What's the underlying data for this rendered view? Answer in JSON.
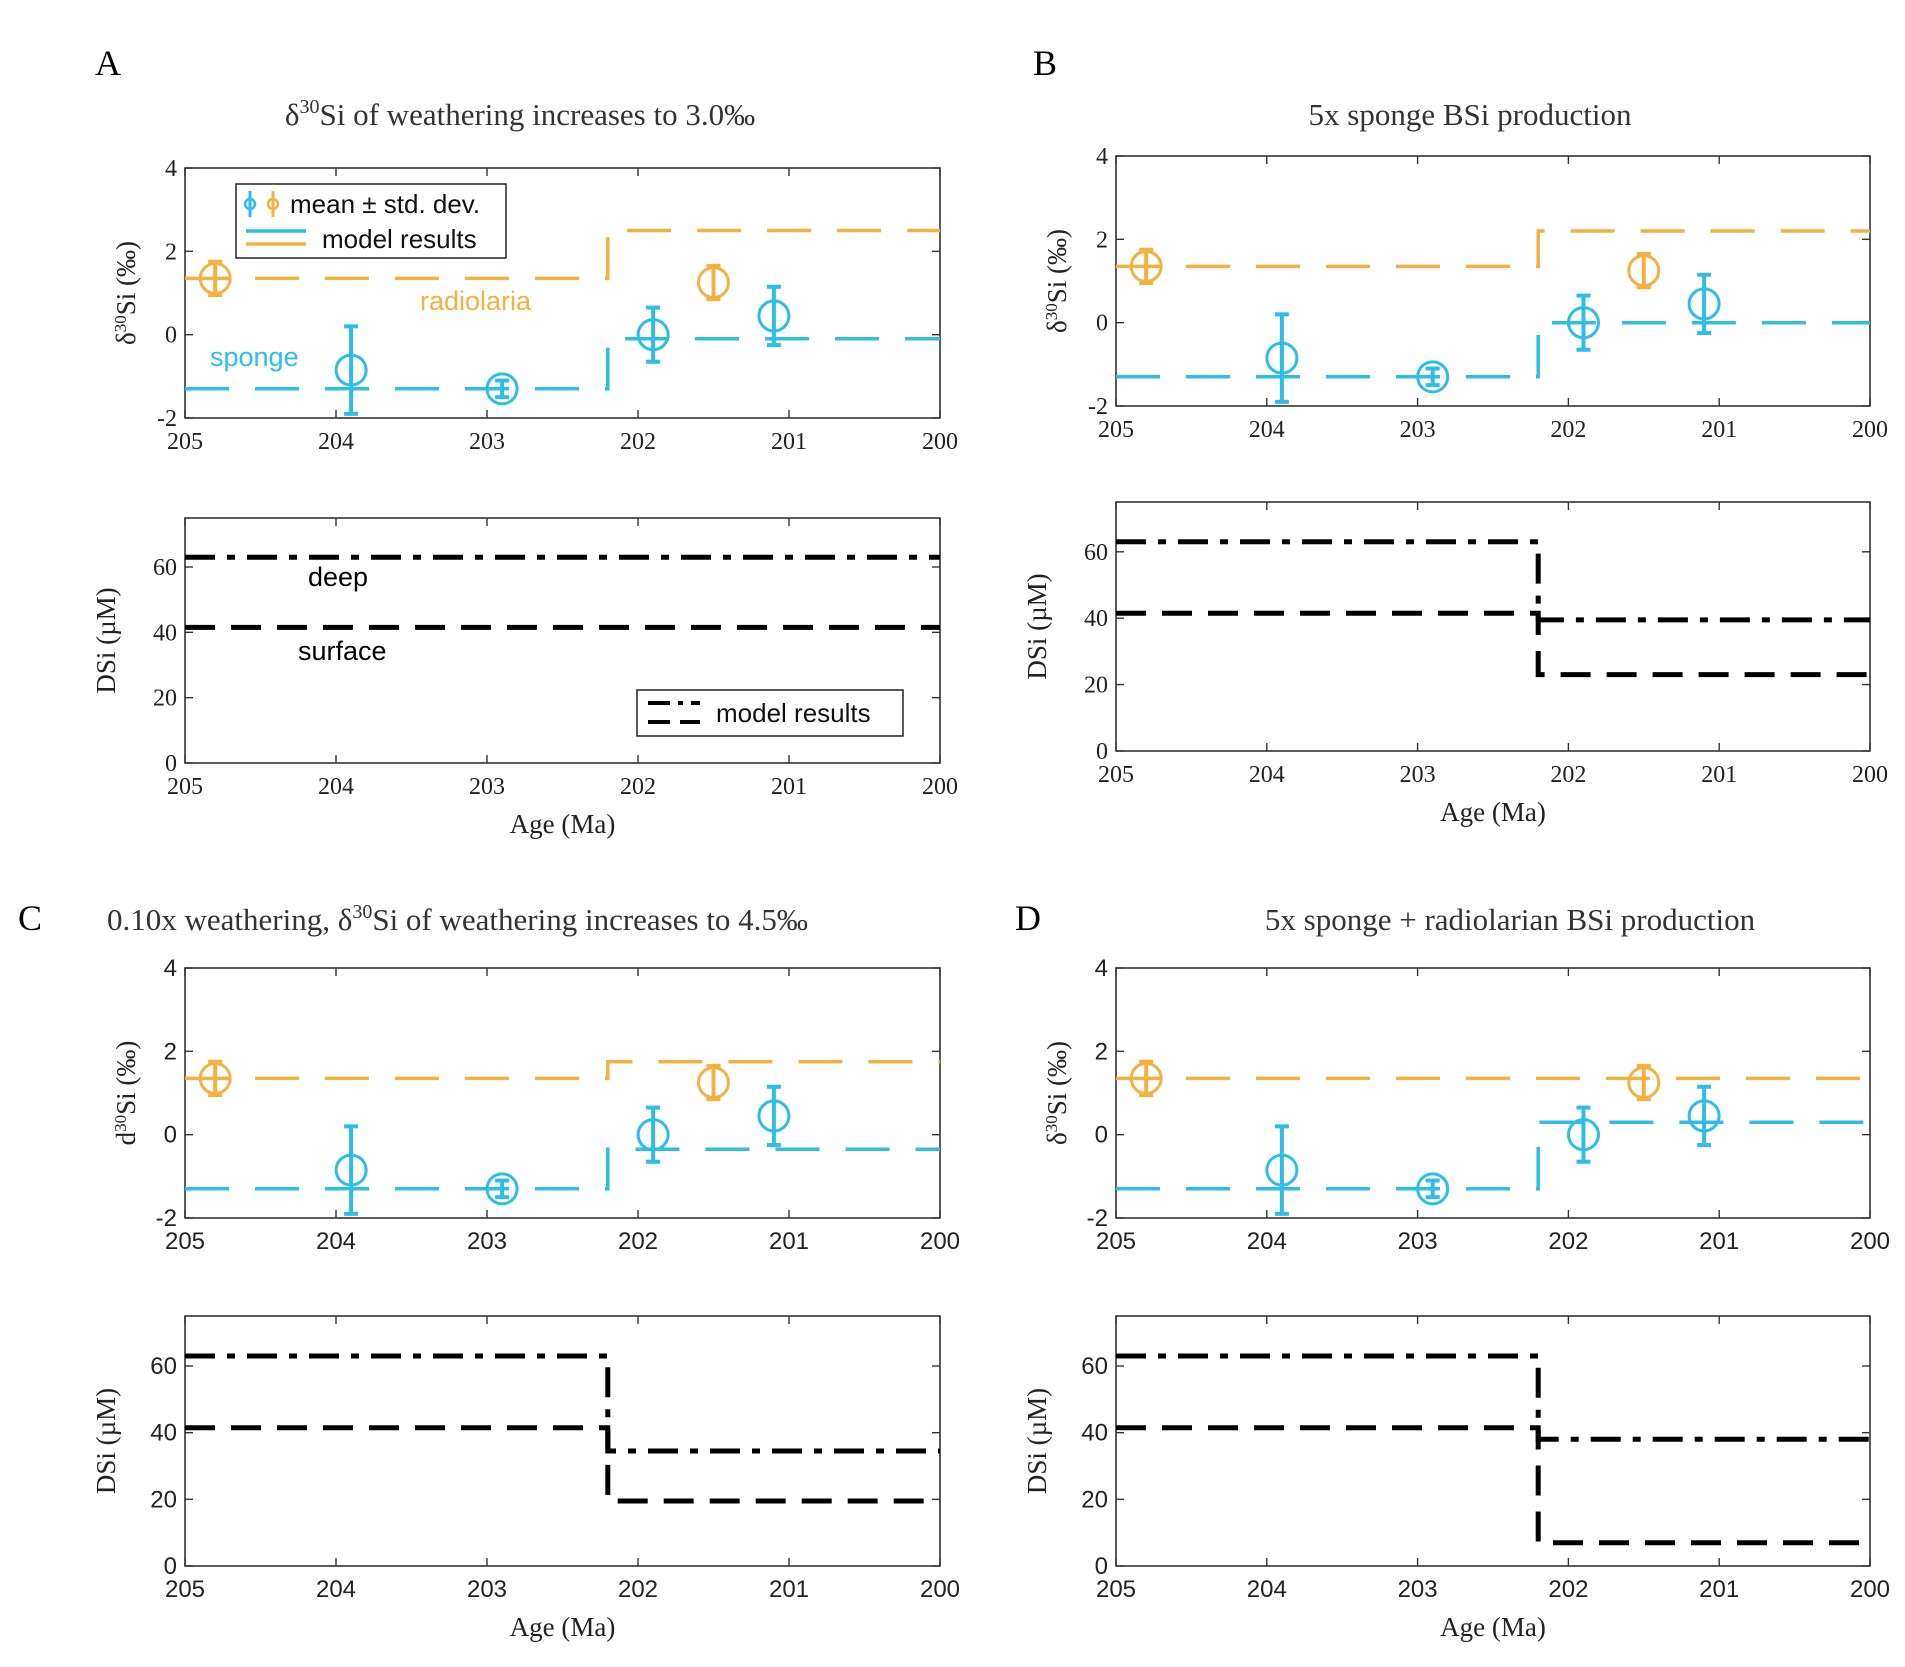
{
  "colors": {
    "sponge": "#2dbde8",
    "radiolaria": "#f4b040",
    "model": "#000000",
    "axis": "#333333"
  },
  "shared": {
    "age_label": "Age (Ma)",
    "dsi_label": "DSi (µM)",
    "x_ticks": [
      "205",
      "204",
      "203",
      "202",
      "201",
      "200"
    ],
    "iso_ticks": [
      "4",
      "2",
      "0",
      "-2"
    ],
    "dsi_ticks": [
      "60",
      "40",
      "20",
      "0"
    ]
  },
  "panels": [
    {
      "letter": "A",
      "title_parts": [
        "δ",
        "30",
        "Si of weathering increases to 3.0‰"
      ],
      "iso_ylabel": [
        "δ",
        "30",
        "Si (‰)"
      ],
      "annotations": {
        "radiolaria": "radiolaria",
        "sponge": "sponge",
        "deep": "deep",
        "surface": "surface"
      },
      "legend": {
        "data": "mean ± std. dev.",
        "model": "model results"
      },
      "dsi_legend": "model results"
    },
    {
      "letter": "B",
      "title_parts": [
        "",
        "",
        "5x sponge BSi production"
      ],
      "iso_ylabel": [
        "δ",
        "30",
        "Si (‰)"
      ]
    },
    {
      "letter": "C",
      "title_parts": [
        "0.10x weathering, δ",
        "30",
        "Si of weathering increases to 4.5‰"
      ],
      "iso_ylabel": [
        "d",
        "30",
        "Si (‰)"
      ]
    },
    {
      "letter": "D",
      "title_parts": [
        "",
        "",
        "5x sponge + radiolarian BSi production"
      ],
      "iso_ylabel": [
        "δ",
        "30",
        "Si (‰)"
      ]
    }
  ],
  "chart_data": [
    {
      "panel": "A",
      "type": "line",
      "xlim": [
        205,
        200
      ],
      "ylim": [
        -2,
        4
      ],
      "xlabel": "",
      "ylabel": "δ30Si (‰)",
      "observations": {
        "sponge": [
          {
            "x": 203.9,
            "y": -0.85,
            "sd": 1.05
          },
          {
            "x": 202.9,
            "y": -1.3,
            "sd": 0.2
          },
          {
            "x": 201.9,
            "y": 0.0,
            "sd": 0.65
          },
          {
            "x": 201.1,
            "y": 0.45,
            "sd": 0.7
          }
        ],
        "radiolaria": [
          {
            "x": 204.8,
            "y": 1.35,
            "sd": 0.4
          },
          {
            "x": 201.5,
            "y": 1.25,
            "sd": 0.4
          }
        ]
      },
      "model": {
        "sponge": {
          "x": [
            205,
            202.2,
            202.2,
            200
          ],
          "y": [
            -1.3,
            -1.3,
            -0.1,
            -0.1
          ]
        },
        "radiolaria": {
          "x": [
            205,
            202.2,
            202.2,
            200
          ],
          "y": [
            1.35,
            1.35,
            2.5,
            2.5
          ]
        }
      }
    },
    {
      "panel": "A",
      "type": "line",
      "xlim": [
        205,
        200
      ],
      "ylim": [
        0,
        75
      ],
      "xlabel": "Age (Ma)",
      "ylabel": "DSi (µM)",
      "series": [
        {
          "name": "deep",
          "x": [
            205,
            200
          ],
          "y": [
            63,
            63
          ]
        },
        {
          "name": "surface",
          "x": [
            205,
            200
          ],
          "y": [
            41.5,
            41.5
          ]
        }
      ]
    },
    {
      "panel": "B",
      "type": "line",
      "xlim": [
        205,
        200
      ],
      "ylim": [
        -2,
        4
      ],
      "xlabel": "",
      "ylabel": "δ30Si (‰)",
      "observations": {
        "sponge": [
          {
            "x": 203.9,
            "y": -0.85,
            "sd": 1.05
          },
          {
            "x": 202.9,
            "y": -1.3,
            "sd": 0.2
          },
          {
            "x": 201.9,
            "y": 0.0,
            "sd": 0.65
          },
          {
            "x": 201.1,
            "y": 0.45,
            "sd": 0.7
          }
        ],
        "radiolaria": [
          {
            "x": 204.8,
            "y": 1.35,
            "sd": 0.4
          },
          {
            "x": 201.5,
            "y": 1.25,
            "sd": 0.4
          }
        ]
      },
      "model": {
        "sponge": {
          "x": [
            205,
            202.2,
            202.2,
            200
          ],
          "y": [
            -1.3,
            -1.3,
            0.0,
            0.0
          ]
        },
        "radiolaria": {
          "x": [
            205,
            202.2,
            202.2,
            200
          ],
          "y": [
            1.35,
            1.35,
            2.2,
            2.2
          ]
        }
      }
    },
    {
      "panel": "B",
      "type": "line",
      "xlim": [
        205,
        200
      ],
      "ylim": [
        0,
        75
      ],
      "xlabel": "Age (Ma)",
      "ylabel": "DSi (µM)",
      "series": [
        {
          "name": "deep",
          "x": [
            205,
            202.2,
            202.2,
            200
          ],
          "y": [
            63,
            63,
            39.5,
            39.5
          ]
        },
        {
          "name": "surface",
          "x": [
            205,
            202.2,
            202.2,
            200
          ],
          "y": [
            41.5,
            41.5,
            23,
            23
          ]
        }
      ]
    },
    {
      "panel": "C",
      "type": "line",
      "xlim": [
        205,
        200
      ],
      "ylim": [
        -2,
        4
      ],
      "xlabel": "",
      "ylabel": "d30Si (‰)",
      "observations": {
        "sponge": [
          {
            "x": 203.9,
            "y": -0.85,
            "sd": 1.05
          },
          {
            "x": 202.9,
            "y": -1.3,
            "sd": 0.2
          },
          {
            "x": 201.9,
            "y": 0.0,
            "sd": 0.65
          },
          {
            "x": 201.1,
            "y": 0.45,
            "sd": 0.7
          }
        ],
        "radiolaria": [
          {
            "x": 204.8,
            "y": 1.35,
            "sd": 0.4
          },
          {
            "x": 201.5,
            "y": 1.25,
            "sd": 0.4
          }
        ]
      },
      "model": {
        "sponge": {
          "x": [
            205,
            202.2,
            202.2,
            200
          ],
          "y": [
            -1.3,
            -1.3,
            -0.35,
            -0.35
          ]
        },
        "radiolaria": {
          "x": [
            205,
            202.2,
            202.2,
            200
          ],
          "y": [
            1.35,
            1.35,
            1.75,
            1.75
          ]
        }
      }
    },
    {
      "panel": "C",
      "type": "line",
      "xlim": [
        205,
        200
      ],
      "ylim": [
        0,
        75
      ],
      "xlabel": "Age (Ma)",
      "ylabel": "DSi (µM)",
      "series": [
        {
          "name": "deep",
          "x": [
            205,
            202.2,
            202.2,
            200
          ],
          "y": [
            63,
            63,
            34.5,
            34.5
          ]
        },
        {
          "name": "surface",
          "x": [
            205,
            202.2,
            202.2,
            200
          ],
          "y": [
            41.5,
            41.5,
            19.5,
            19.5
          ]
        }
      ]
    },
    {
      "panel": "D",
      "type": "line",
      "xlim": [
        205,
        200
      ],
      "ylim": [
        -2,
        4
      ],
      "xlabel": "",
      "ylabel": "δ30Si (‰)",
      "observations": {
        "sponge": [
          {
            "x": 203.9,
            "y": -0.85,
            "sd": 1.05
          },
          {
            "x": 202.9,
            "y": -1.3,
            "sd": 0.2
          },
          {
            "x": 201.9,
            "y": 0.0,
            "sd": 0.65
          },
          {
            "x": 201.1,
            "y": 0.45,
            "sd": 0.7
          }
        ],
        "radiolaria": [
          {
            "x": 204.8,
            "y": 1.35,
            "sd": 0.4
          },
          {
            "x": 201.5,
            "y": 1.25,
            "sd": 0.4
          }
        ]
      },
      "model": {
        "sponge": {
          "x": [
            205,
            202.2,
            202.2,
            200
          ],
          "y": [
            -1.3,
            -1.3,
            0.3,
            0.3
          ]
        },
        "radiolaria": {
          "x": [
            205,
            202.2,
            202.2,
            200
          ],
          "y": [
            1.35,
            1.35,
            1.35,
            1.35
          ]
        }
      }
    },
    {
      "panel": "D",
      "type": "line",
      "xlim": [
        205,
        200
      ],
      "ylim": [
        0,
        75
      ],
      "xlabel": "Age (Ma)",
      "ylabel": "DSi (µM)",
      "series": [
        {
          "name": "deep",
          "x": [
            205,
            202.2,
            202.2,
            200
          ],
          "y": [
            63,
            63,
            38,
            38
          ]
        },
        {
          "name": "surface",
          "x": [
            205,
            202.2,
            202.2,
            200
          ],
          "y": [
            41.5,
            41.5,
            7,
            7
          ]
        }
      ]
    }
  ]
}
